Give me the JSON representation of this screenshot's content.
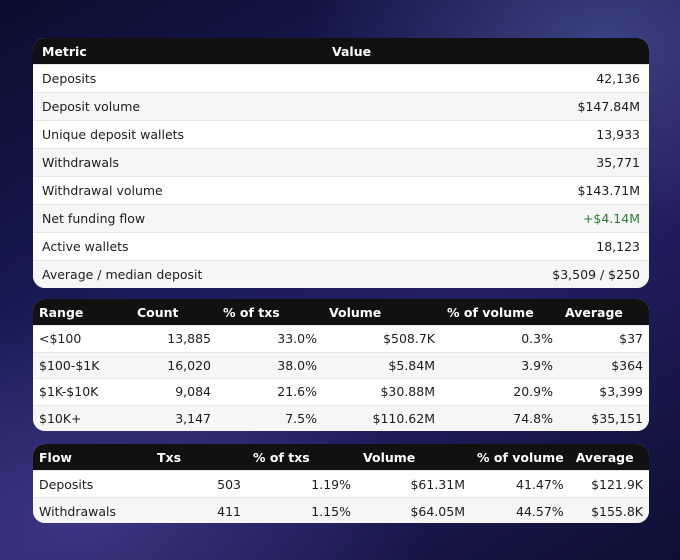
{
  "metrics": {
    "headers": {
      "metric": "Metric",
      "value": "Value"
    },
    "rows": [
      {
        "label": "Deposits",
        "value": "42,136"
      },
      {
        "label": "Deposit volume",
        "value": "$147.84M"
      },
      {
        "label": "Unique deposit wallets",
        "value": "13,933"
      },
      {
        "label": "Withdrawals",
        "value": "35,771"
      },
      {
        "label": "Withdrawal volume",
        "value": "$143.71M"
      },
      {
        "label": "Net funding flow",
        "value": "+$4.14M"
      },
      {
        "label": "Active wallets",
        "value": "18,123"
      },
      {
        "label": "Average / median deposit",
        "value": "$3,509 / $250"
      }
    ],
    "positive_color": "#2e7d32"
  },
  "ranges": {
    "headers": {
      "range": "Range",
      "count": "Count",
      "pct_txs": "% of txs",
      "volume": "Volume",
      "pct_volume": "% of volume",
      "average": "Average"
    },
    "rows": [
      {
        "range": "<$100",
        "count": "13,885",
        "pct_txs": "33.0%",
        "volume": "$508.7K",
        "pct_volume": "0.3%",
        "average": "$37"
      },
      {
        "range": "$100-$1K",
        "count": "16,020",
        "pct_txs": "38.0%",
        "volume": "$5.84M",
        "pct_volume": "3.9%",
        "average": "$364"
      },
      {
        "range": "$1K-$10K",
        "count": "9,084",
        "pct_txs": "21.6%",
        "volume": "$30.88M",
        "pct_volume": "20.9%",
        "average": "$3,399"
      },
      {
        "range": "$10K+",
        "count": "3,147",
        "pct_txs": "7.5%",
        "volume": "$110.62M",
        "pct_volume": "74.8%",
        "average": "$35,151"
      }
    ]
  },
  "flows": {
    "headers": {
      "flow": "Flow",
      "txs": "Txs",
      "pct_txs": "% of txs",
      "volume": "Volume",
      "pct_volume": "% of volume",
      "average": "Average"
    },
    "rows": [
      {
        "flow": "Deposits",
        "txs": "503",
        "pct_txs": "1.19%",
        "volume": "$61.31M",
        "pct_volume": "41.47%",
        "average": "$121.9K"
      },
      {
        "flow": "Withdrawals",
        "txs": "411",
        "pct_txs": "1.15%",
        "volume": "$64.05M",
        "pct_volume": "44.57%",
        "average": "$155.8K"
      }
    ]
  }
}
